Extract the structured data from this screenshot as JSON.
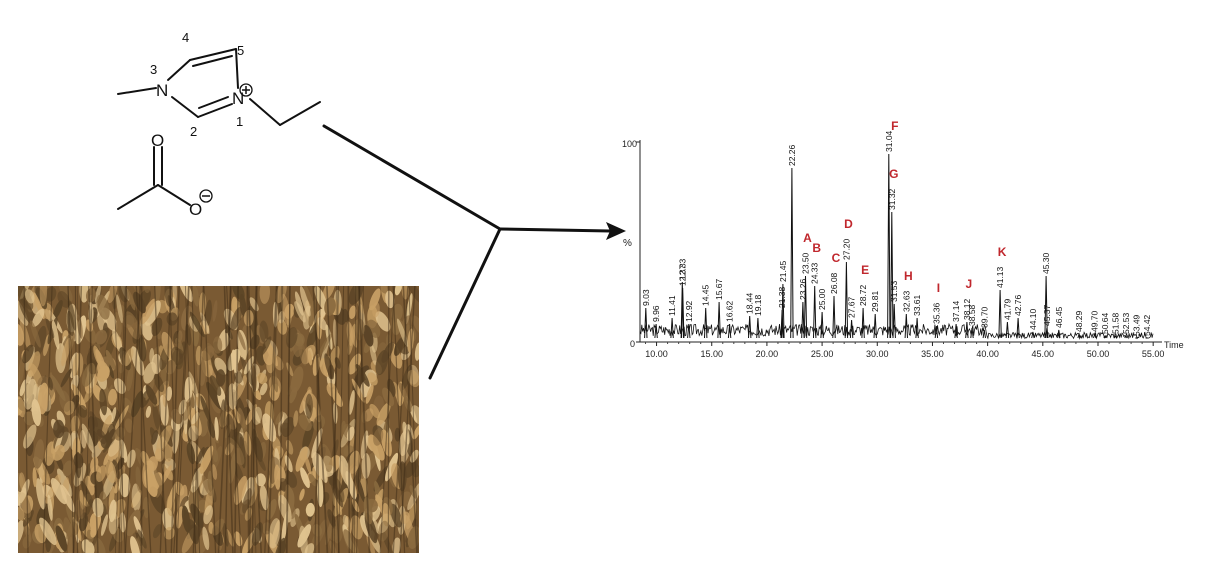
{
  "molecule": {
    "ring_numbers": [
      "1",
      "2",
      "3",
      "4",
      "5"
    ],
    "atoms": {
      "n3": "N",
      "n1": "N",
      "o_carbonyl": "O",
      "o_anion": "O"
    },
    "charges": {
      "cation": "+",
      "anion": "−"
    }
  },
  "photo": {
    "subject": "dry soybean plants",
    "palette": [
      "#c9a166",
      "#8a6a3f",
      "#5b4426",
      "#e0c38f"
    ]
  },
  "chromatogram": {
    "y_unit": "%",
    "y_max_label": "100",
    "y_min_label": "0",
    "x_unit": "Time",
    "x_ticks": [
      "10.00",
      "15.00",
      "20.00",
      "25.00",
      "30.00",
      "35.00",
      "40.00",
      "45.00",
      "50.00",
      "55.00"
    ],
    "letter_color": "#c0272d",
    "peak_letters": [
      "A",
      "B",
      "C",
      "D",
      "E",
      "F",
      "G",
      "H",
      "I",
      "J",
      "K"
    ]
  },
  "chart_data": {
    "type": "line",
    "xlabel": "Time",
    "ylabel": "%",
    "xlim": [
      8.5,
      55.8
    ],
    "ylim": [
      0,
      100
    ],
    "peaks": [
      {
        "t": 9.03,
        "h": 17,
        "label": "9.03"
      },
      {
        "t": 9.96,
        "h": 9,
        "label": "9.96"
      },
      {
        "t": 11.41,
        "h": 12,
        "label": "11.41"
      },
      {
        "t": 12.33,
        "h": 30,
        "label": "12.33"
      },
      {
        "t": 12.37,
        "h": 27,
        "label": "12.37"
      },
      {
        "t": 12.92,
        "h": 9,
        "label": "12.92"
      },
      {
        "t": 14.45,
        "h": 17,
        "label": "14.45"
      },
      {
        "t": 15.67,
        "h": 20,
        "label": "15.67"
      },
      {
        "t": 16.62,
        "h": 9,
        "label": "16.62"
      },
      {
        "t": 18.44,
        "h": 13,
        "label": "18.44"
      },
      {
        "t": 19.18,
        "h": 12,
        "label": "19.18"
      },
      {
        "t": 21.38,
        "h": 16,
        "label": "21.38"
      },
      {
        "t": 21.45,
        "h": 29,
        "label": "21.45"
      },
      {
        "t": 22.26,
        "h": 87,
        "label": "22.26"
      },
      {
        "t": 23.26,
        "h": 20,
        "label": "23.26"
      },
      {
        "t": 23.5,
        "h": 33,
        "label": "23.50"
      },
      {
        "t": 24.33,
        "h": 28,
        "label": "24.33"
      },
      {
        "t": 25.0,
        "h": 15,
        "label": "25.00"
      },
      {
        "t": 26.08,
        "h": 23,
        "label": "26.08"
      },
      {
        "t": 27.2,
        "h": 40,
        "label": "27.20"
      },
      {
        "t": 27.67,
        "h": 11,
        "label": "27.67"
      },
      {
        "t": 28.72,
        "h": 17,
        "label": "28.72"
      },
      {
        "t": 29.81,
        "h": 14,
        "label": "29.81"
      },
      {
        "t": 31.04,
        "h": 94,
        "label": "31.04"
      },
      {
        "t": 31.32,
        "h": 65,
        "label": "31.32"
      },
      {
        "t": 31.53,
        "h": 19,
        "label": "31.53"
      },
      {
        "t": 32.63,
        "h": 14,
        "label": "32.63"
      },
      {
        "t": 33.61,
        "h": 12,
        "label": "33.61"
      },
      {
        "t": 35.36,
        "h": 8,
        "label": "35.36"
      },
      {
        "t": 37.14,
        "h": 9,
        "label": "37.14"
      },
      {
        "t": 38.12,
        "h": 10,
        "label": "38.12"
      },
      {
        "t": 38.58,
        "h": 7,
        "label": "38.58"
      },
      {
        "t": 39.7,
        "h": 6,
        "label": "39.70"
      },
      {
        "t": 41.13,
        "h": 26,
        "label": "41.13"
      },
      {
        "t": 41.79,
        "h": 10,
        "label": "41.79"
      },
      {
        "t": 42.76,
        "h": 12,
        "label": "42.76"
      },
      {
        "t": 44.1,
        "h": 5,
        "label": "44.10"
      },
      {
        "t": 45.3,
        "h": 33,
        "label": "45.30"
      },
      {
        "t": 45.37,
        "h": 7,
        "label": "45.37"
      },
      {
        "t": 46.45,
        "h": 6,
        "label": "46.45"
      },
      {
        "t": 48.29,
        "h": 4,
        "label": "48.29"
      },
      {
        "t": 49.7,
        "h": 4,
        "label": "49.70"
      },
      {
        "t": 50.64,
        "h": 3,
        "label": "50.64"
      },
      {
        "t": 51.58,
        "h": 3,
        "label": "51.58"
      },
      {
        "t": 52.53,
        "h": 3,
        "label": "52.53"
      },
      {
        "t": 53.49,
        "h": 2,
        "label": "53.49"
      },
      {
        "t": 54.42,
        "h": 2,
        "label": "54.42"
      }
    ],
    "letter_marks": [
      {
        "letter": "A",
        "t": 23.5
      },
      {
        "letter": "B",
        "t": 24.33
      },
      {
        "letter": "C",
        "t": 26.08
      },
      {
        "letter": "D",
        "t": 27.2
      },
      {
        "letter": "E",
        "t": 28.72
      },
      {
        "letter": "F",
        "t": 31.04
      },
      {
        "letter": "G",
        "t": 31.32
      },
      {
        "letter": "H",
        "t": 32.63
      },
      {
        "letter": "I",
        "t": 35.36
      },
      {
        "letter": "J",
        "t": 38.12
      },
      {
        "letter": "K",
        "t": 41.13
      }
    ]
  }
}
